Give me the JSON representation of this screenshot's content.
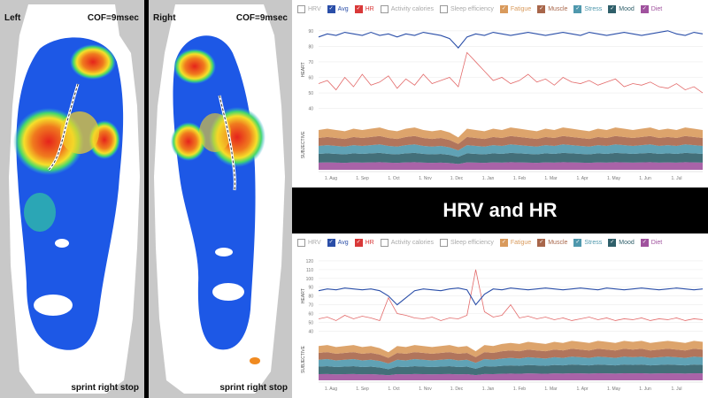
{
  "foot_scans": {
    "left": {
      "side_label": "Left",
      "cof_label": "COF=9msec",
      "caption": "sprint right stop"
    },
    "right": {
      "side_label": "Right",
      "cof_label": "COF=9msec",
      "caption": "sprint right stop"
    }
  },
  "banner": {
    "title": "HRV and HR"
  },
  "legend": [
    {
      "label": "HRV",
      "checked": false,
      "color": "#9e9e9e"
    },
    {
      "label": "Avg",
      "checked": true,
      "color": "#2a4ea8"
    },
    {
      "label": "HR",
      "checked": true,
      "color": "#d93838"
    },
    {
      "label": "Activity calories",
      "checked": false,
      "color": "#bbbbbb"
    },
    {
      "label": "Sleep efficiency",
      "checked": false,
      "color": "#bbbbbb"
    },
    {
      "label": "Fatigue",
      "checked": true,
      "color": "#d99a5c"
    },
    {
      "label": "Muscle",
      "checked": true,
      "color": "#a8664a"
    },
    {
      "label": "Stress",
      "checked": true,
      "color": "#4f98ad"
    },
    {
      "label": "Mood",
      "checked": true,
      "color": "#2f5f6a"
    },
    {
      "label": "Diet",
      "checked": true,
      "color": "#a0529e"
    }
  ],
  "chart_data": [
    {
      "type": "line",
      "title": "",
      "sections": [
        "HEART",
        "SUBJECTIVE"
      ],
      "x_ticks": [
        "1. Aug",
        "1. Sep",
        "1. Oct",
        "1. Nov",
        "1. Dec",
        "1. Jan",
        "1. Feb",
        "1. Mar",
        "1. Apr",
        "1. May",
        "1. Jun",
        "1. Jul"
      ],
      "y_ticks": [
        40,
        50,
        60,
        70,
        80,
        90
      ],
      "ylim": [
        35,
        95
      ],
      "series": [
        {
          "name": "Avg",
          "values": [
            86,
            88,
            87,
            89,
            88,
            87,
            89,
            87,
            88,
            86,
            88,
            87,
            89,
            88,
            87,
            85,
            79,
            86,
            88,
            87,
            89,
            88,
            87,
            88,
            89,
            88,
            87,
            88,
            89,
            88,
            87,
            89,
            88,
            87,
            88,
            89,
            88,
            87,
            88,
            89,
            90,
            88,
            87,
            89,
            88
          ]
        },
        {
          "name": "HR",
          "values": [
            56,
            58,
            52,
            60,
            54,
            62,
            55,
            57,
            61,
            53,
            59,
            55,
            62,
            56,
            58,
            60,
            54,
            76,
            70,
            64,
            58,
            60,
            56,
            58,
            62,
            57,
            59,
            55,
            60,
            57,
            56,
            58,
            55,
            57,
            59,
            54,
            56,
            55,
            57,
            54,
            53,
            56,
            52,
            54,
            50
          ]
        },
        {
          "name": "Stacked subjective total",
          "values": [
            32,
            33,
            32,
            31,
            33,
            32,
            33,
            34,
            32,
            31,
            33,
            34,
            32,
            31,
            32,
            30,
            26,
            33,
            32,
            31,
            33,
            32,
            34,
            33,
            32,
            31,
            33,
            32,
            34,
            33,
            32,
            31,
            33,
            32,
            34,
            33,
            32,
            33,
            34,
            32,
            33,
            32,
            34,
            33,
            32
          ]
        }
      ]
    },
    {
      "type": "line",
      "title": "",
      "sections": [
        "HEART",
        "SUBJECTIVE"
      ],
      "x_ticks": [
        "1. Aug",
        "1. Sep",
        "1. Oct",
        "1. Nov",
        "1. Dec",
        "1. Jan",
        "1. Feb",
        "1. Mar",
        "1. Apr",
        "1. May",
        "1. Jun",
        "1. Jul"
      ],
      "y_ticks": [
        40,
        50,
        60,
        70,
        80,
        90,
        100,
        110,
        120
      ],
      "ylim": [
        35,
        125
      ],
      "series": [
        {
          "name": "Avg",
          "values": [
            86,
            88,
            87,
            89,
            88,
            87,
            88,
            86,
            80,
            70,
            78,
            86,
            88,
            87,
            86,
            88,
            89,
            87,
            70,
            82,
            88,
            87,
            89,
            88,
            87,
            88,
            89,
            88,
            87,
            88,
            89,
            88,
            87,
            89,
            88,
            87,
            88,
            89,
            88,
            87,
            88,
            89,
            88,
            87,
            88
          ]
        },
        {
          "name": "HR",
          "values": [
            54,
            56,
            52,
            58,
            54,
            57,
            55,
            52,
            78,
            60,
            58,
            55,
            54,
            56,
            52,
            55,
            54,
            58,
            110,
            62,
            56,
            58,
            70,
            55,
            57,
            54,
            56,
            53,
            55,
            52,
            54,
            56,
            53,
            55,
            52,
            54,
            53,
            55,
            52,
            54,
            53,
            55,
            52,
            54,
            53
          ]
        },
        {
          "name": "Stacked subjective total",
          "values": [
            33,
            34,
            32,
            33,
            34,
            32,
            33,
            31,
            27,
            33,
            32,
            34,
            33,
            32,
            33,
            34,
            32,
            33,
            28,
            34,
            33,
            35,
            36,
            35,
            37,
            36,
            35,
            37,
            36,
            38,
            37,
            36,
            38,
            37,
            36,
            38,
            37,
            38,
            36,
            37,
            38,
            37,
            36,
            38,
            37
          ]
        }
      ]
    }
  ]
}
